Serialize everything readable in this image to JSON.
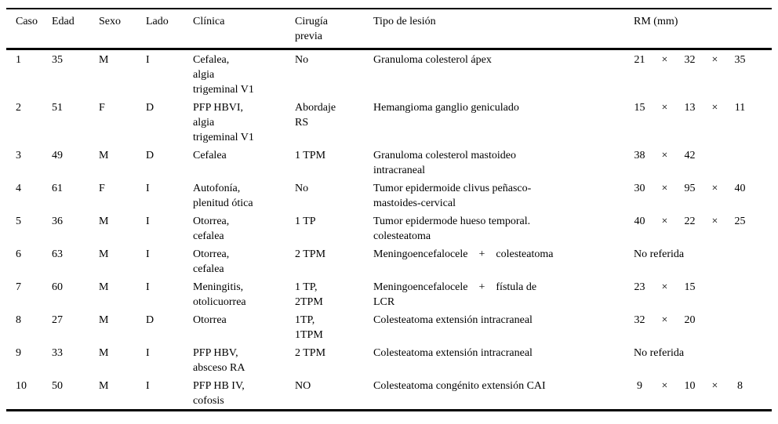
{
  "colors": {
    "background": "#ffffff",
    "text": "#000000",
    "rule": "#000000"
  },
  "table": {
    "columns": [
      "Caso",
      "Edad",
      "Sexo",
      "Lado",
      "Clínica",
      "Cirugía\nprevia",
      "Tipo de lesión",
      "RM (mm)"
    ],
    "rows": [
      {
        "caso": "1",
        "edad": "35",
        "sexo": "M",
        "lado": "I",
        "clinica": "Cefalea,\nalgia\ntrigeminal V1",
        "cirugia_previa": "No",
        "tipo_de_lesion": "Granuloma colesterol ápex",
        "rm_mm": [
          "21",
          "×",
          "32",
          "×",
          "35"
        ]
      },
      {
        "caso": "2",
        "edad": "51",
        "sexo": "F",
        "lado": "D",
        "clinica": "PFP HBVI,\nalgia\ntrigeminal V1",
        "cirugia_previa": "Abordaje\nRS",
        "tipo_de_lesion": "Hemangioma ganglio geniculado",
        "rm_mm": [
          "15",
          "×",
          "13",
          "×",
          "11"
        ]
      },
      {
        "caso": "3",
        "edad": "49",
        "sexo": "M",
        "lado": "D",
        "clinica": "Cefalea",
        "cirugia_previa": "1 TPM",
        "tipo_de_lesion": "Granuloma colesterol mastoideo\nintracraneal",
        "rm_mm": [
          "38",
          "×",
          "42"
        ]
      },
      {
        "caso": "4",
        "edad": "61",
        "sexo": "F",
        "lado": "I",
        "clinica": "Autofonía,\nplenitud ótica",
        "cirugia_previa": "No",
        "tipo_de_lesion": "Tumor epidermoide clivus peñasco-\nmastoides-cervical",
        "rm_mm": [
          "30",
          "×",
          "95",
          "×",
          "40"
        ]
      },
      {
        "caso": "5",
        "edad": "36",
        "sexo": "M",
        "lado": "I",
        "clinica": "Otorrea,\ncefalea",
        "cirugia_previa": "1 TP",
        "tipo_de_lesion": "Tumor epidermode hueso temporal.\ncolesteatoma",
        "rm_mm": [
          "40",
          "×",
          "22",
          "×",
          "25"
        ]
      },
      {
        "caso": "6",
        "edad": "63",
        "sexo": "M",
        "lado": "I",
        "clinica": "Otorrea,\ncefalea",
        "cirugia_previa": "2 TPM",
        "tipo_de_lesion": "Meningoencefalocele    +    colesteatoma",
        "rm_mm": [
          "No referida"
        ]
      },
      {
        "caso": "7",
        "edad": "60",
        "sexo": "M",
        "lado": "I",
        "clinica": "Meningitis,\notolicuorrea",
        "cirugia_previa": "1 TP,\n2TPM",
        "tipo_de_lesion": "Meningoencefalocele    +    fístula de\nLCR",
        "rm_mm": [
          "23",
          "×",
          "15"
        ]
      },
      {
        "caso": "8",
        "edad": "27",
        "sexo": "M",
        "lado": "D",
        "clinica": "Otorrea",
        "cirugia_previa": "1TP,\n1TPM",
        "tipo_de_lesion": "Colesteatoma extensión intracraneal",
        "rm_mm": [
          "32",
          "×",
          "20"
        ]
      },
      {
        "caso": "9",
        "edad": "33",
        "sexo": "M",
        "lado": "I",
        "clinica": "PFP HBV,\nabsceso RA",
        "cirugia_previa": "2 TPM",
        "tipo_de_lesion": "Colesteatoma extensión intracraneal",
        "rm_mm": [
          "No referida"
        ]
      },
      {
        "caso": "10",
        "edad": "50",
        "sexo": "M",
        "lado": "I",
        "clinica": "PFP HB IV,\ncofosis",
        "cirugia_previa": "NO",
        "tipo_de_lesion": "Colesteatoma congénito extensión CAI",
        "rm_mm": [
          "9",
          "×",
          "10",
          "×",
          "8"
        ]
      }
    ]
  }
}
